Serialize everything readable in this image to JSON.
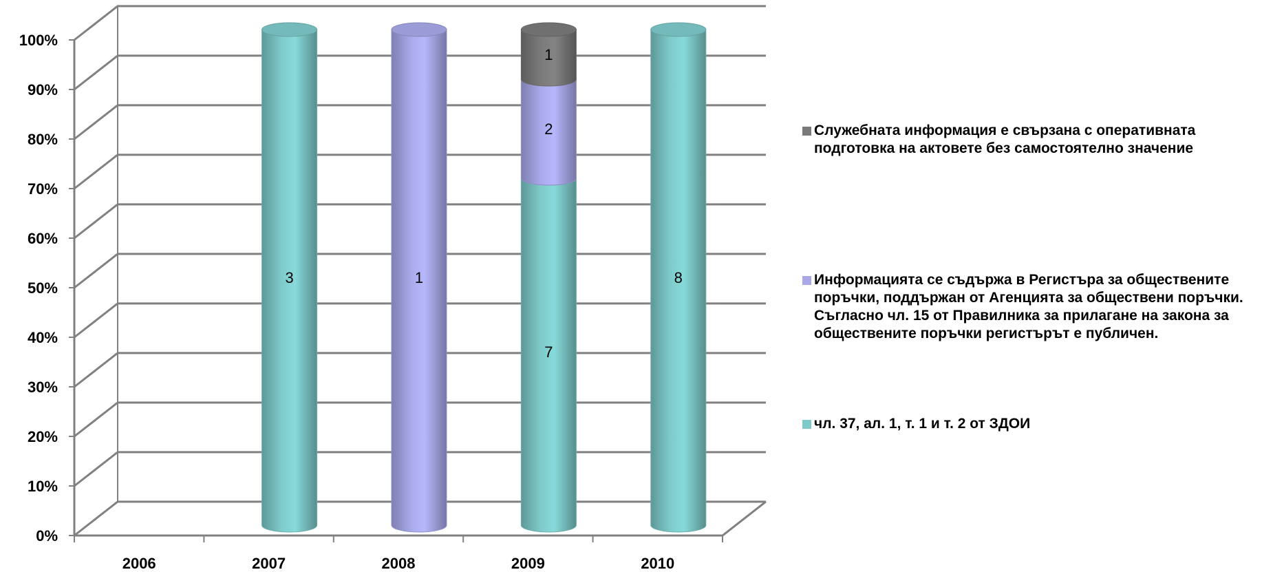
{
  "chart_data": {
    "type": "bar",
    "stacked": "percent",
    "categories": [
      "2006",
      "2007",
      "2008",
      "2009",
      "2010"
    ],
    "series": [
      {
        "name": "чл. 37, ал. 1, т. 1 и т. 2 от ЗДОИ",
        "values": [
          0,
          3,
          0,
          7,
          8
        ],
        "color": "#7ecaca"
      },
      {
        "name": "Информацията се съдържа в Регистъра за обществените поръчки, поддържан от Агенцията за обществени поръчки. Съгласно чл. 15 от Правилника за прилагане на закона за обществените поръчки регистърът е публичен.",
        "values": [
          0,
          0,
          1,
          2,
          0
        ],
        "color": "#a9a9ea"
      },
      {
        "name": "Служебната информация е свързана с оперативната подготовка на актовете без самостоятелно значение",
        "values": [
          0,
          0,
          0,
          1,
          0
        ],
        "color": "#7a7a7a"
      }
    ],
    "yticks": [
      "0%",
      "10%",
      "20%",
      "30%",
      "40%",
      "50%",
      "60%",
      "70%",
      "80%",
      "90%",
      "100%"
    ],
    "ylim": [
      0,
      100
    ],
    "grid": true,
    "legend_position": "right",
    "bar_shape": "cylinder"
  }
}
